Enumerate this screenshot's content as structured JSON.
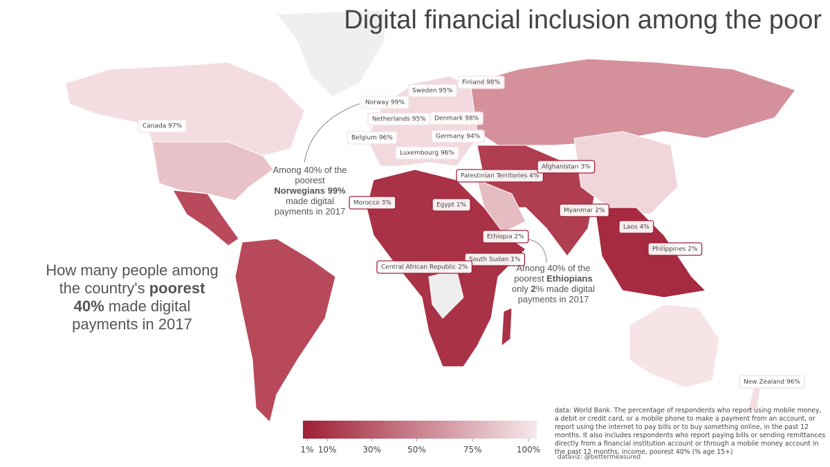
{
  "title": "Digital financial inclusion among the poor",
  "subtitle": {
    "before": "How many people among the country's",
    "bold": "poorest 40%",
    "after": "made digital payments in 2017"
  },
  "annotations": [
    {
      "before": "Among 40% of the poorest",
      "bold": "Norwegians",
      "bold2": "99%",
      "after": "made digital payments in 2017"
    },
    {
      "before": "Among 40% of the poorest",
      "bold": "Ethiopians",
      "mid": "only",
      "bold2": "2",
      "after": "% made digital payments in 2017"
    }
  ],
  "countries": [
    {
      "label": "Canada 97%",
      "value": 97
    },
    {
      "label": "Norway 99%",
      "value": 99
    },
    {
      "label": "Sweden 95%",
      "value": 95
    },
    {
      "label": "Finland 98%",
      "value": 98
    },
    {
      "label": "Netherlands 95%",
      "value": 95
    },
    {
      "label": "Denmark 98%",
      "value": 98
    },
    {
      "label": "Belgium 96%",
      "value": 96
    },
    {
      "label": "Germany 94%",
      "value": 94
    },
    {
      "label": "Luxembourg 96%",
      "value": 96
    },
    {
      "label": "Palestinian Territories 4%",
      "value": 4
    },
    {
      "label": "Afghanistan 3%",
      "value": 3
    },
    {
      "label": "Morocco 3%",
      "value": 3
    },
    {
      "label": "Egypt 1%",
      "value": 1
    },
    {
      "label": "Myanmar 2%",
      "value": 2
    },
    {
      "label": "Laos 4%",
      "value": 4
    },
    {
      "label": "Ethiopia 2%",
      "value": 2
    },
    {
      "label": "Philippines 2%",
      "value": 2
    },
    {
      "label": "South Sudan 1%",
      "value": 1
    },
    {
      "label": "Central African Republic 2%",
      "value": 2
    },
    {
      "label": "New Zealand 96%",
      "value": 96
    }
  ],
  "legend": {
    "ticks": [
      {
        "value": 1,
        "label": "1%"
      },
      {
        "value": 10,
        "label": "10%"
      },
      {
        "value": 30,
        "label": "30%"
      },
      {
        "value": 50,
        "label": "50%"
      },
      {
        "value": 75,
        "label": "75%"
      },
      {
        "value": 100,
        "label": "100%"
      }
    ],
    "colors": [
      "#9e1f35",
      "#f6e8eb"
    ]
  },
  "source": "data: World Bank. The percentage of respondents who report using mobile money, a debit or credit card, or a mobile phone to make a payment from an account, or report using the internet to pay bills or to buy something online, in the past 12 months. It also includes respondents who report paying bills or sending remittances directly from a financial institution account or through a mobile money account in the past 12 months, income, poorest 40% (% age 15+)",
  "credit": "dataviz: @bettermeasured"
}
